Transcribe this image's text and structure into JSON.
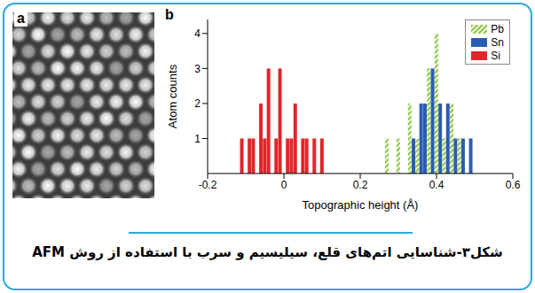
{
  "caption": "شکل۳-شناسایی اتم‌های قلع، سیلیسیم و سرب با استفاده از روش AFM",
  "image_panel": {
    "label": "a"
  },
  "chart_data": {
    "type": "bar",
    "panel_label": "b",
    "x_label": "Topographic height (Å)",
    "y_label": "Atom counts",
    "x": [
      -0.11,
      -0.09,
      -0.08,
      -0.06,
      -0.05,
      -0.04,
      -0.02,
      -0.01,
      0.01,
      0.02,
      0.03,
      0.05,
      0.06,
      0.08,
      0.1,
      0.27,
      0.3,
      0.33,
      0.34,
      0.35,
      0.36,
      0.37,
      0.38,
      0.39,
      0.4,
      0.41,
      0.42,
      0.43,
      0.44,
      0.45,
      0.46,
      0.47,
      0.49
    ],
    "series": [
      {
        "name": "Pb",
        "color": "#8cc63f",
        "values": [
          null,
          null,
          null,
          null,
          null,
          null,
          null,
          null,
          null,
          null,
          null,
          null,
          null,
          null,
          null,
          1,
          1,
          2,
          null,
          1,
          null,
          null,
          3,
          null,
          4,
          null,
          1,
          null,
          2,
          null,
          1,
          null,
          null
        ]
      },
      {
        "name": "Sn",
        "color": "#2b5cb4",
        "values": [
          null,
          null,
          null,
          null,
          null,
          null,
          null,
          null,
          null,
          null,
          null,
          null,
          null,
          null,
          null,
          null,
          null,
          null,
          1,
          null,
          2,
          2,
          null,
          3,
          null,
          2,
          null,
          2,
          null,
          1,
          null,
          1,
          1
        ]
      },
      {
        "name": "Si",
        "color": "#e0262b",
        "values": [
          1,
          1,
          1,
          2,
          1,
          3,
          1,
          3,
          1,
          1,
          2,
          1,
          1,
          1,
          1,
          null,
          null,
          null,
          null,
          null,
          null,
          null,
          null,
          null,
          null,
          null,
          null,
          null,
          null,
          null,
          null,
          null,
          null
        ]
      }
    ],
    "xlim": [
      -0.2,
      0.6
    ],
    "xticks": [
      -0.2,
      0,
      0.2,
      0.4,
      0.6
    ],
    "ylim": [
      0,
      4.4
    ],
    "yticks": [
      1,
      2,
      3,
      4
    ],
    "legend": "upper right"
  }
}
